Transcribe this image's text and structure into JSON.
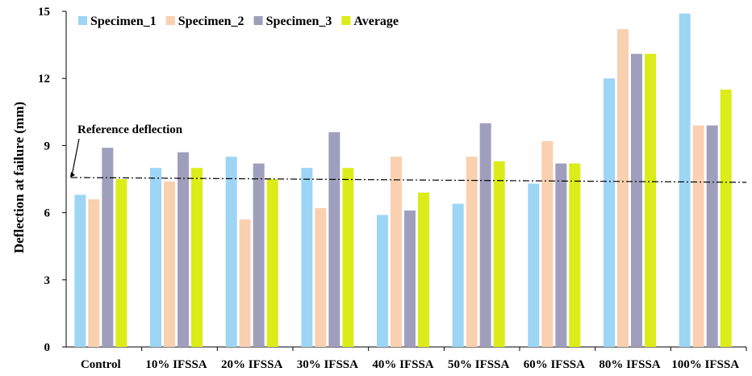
{
  "chart_data": {
    "type": "bar",
    "title": "",
    "xlabel": "",
    "ylabel": "Deflection at failure (mm)",
    "ylim": [
      0,
      15
    ],
    "yticks": [
      0,
      3,
      6,
      9,
      12,
      15
    ],
    "grid": false,
    "legend_position": "top-left",
    "categories": [
      "Control",
      "10% IFSSA",
      "20% IFSSA",
      "30% IFSSA",
      "40% IFSSA",
      "50% IFSSA",
      "60% IFSSA",
      "80% IFSSA",
      "100% IFSSA"
    ],
    "series": [
      {
        "name": "Specimen_1",
        "color": "#9dd5f5",
        "values": [
          6.8,
          8.0,
          8.5,
          8.0,
          5.9,
          6.4,
          7.3,
          12.0,
          14.9
        ]
      },
      {
        "name": "Specimen_2",
        "color": "#f9d0b0",
        "values": [
          6.6,
          7.4,
          5.7,
          6.2,
          8.5,
          8.5,
          9.2,
          14.2,
          9.9
        ]
      },
      {
        "name": "Specimen_3",
        "color": "#9f9fbd",
        "values": [
          8.9,
          8.7,
          8.2,
          9.6,
          6.1,
          10.0,
          8.2,
          13.1,
          9.9
        ]
      },
      {
        "name": "Average",
        "color": "#dbec19",
        "values": [
          7.5,
          8.0,
          7.5,
          8.0,
          6.9,
          8.3,
          8.2,
          13.1,
          11.5
        ]
      }
    ],
    "reference_line": {
      "label": "Reference deflection",
      "value": 7.5
    }
  }
}
